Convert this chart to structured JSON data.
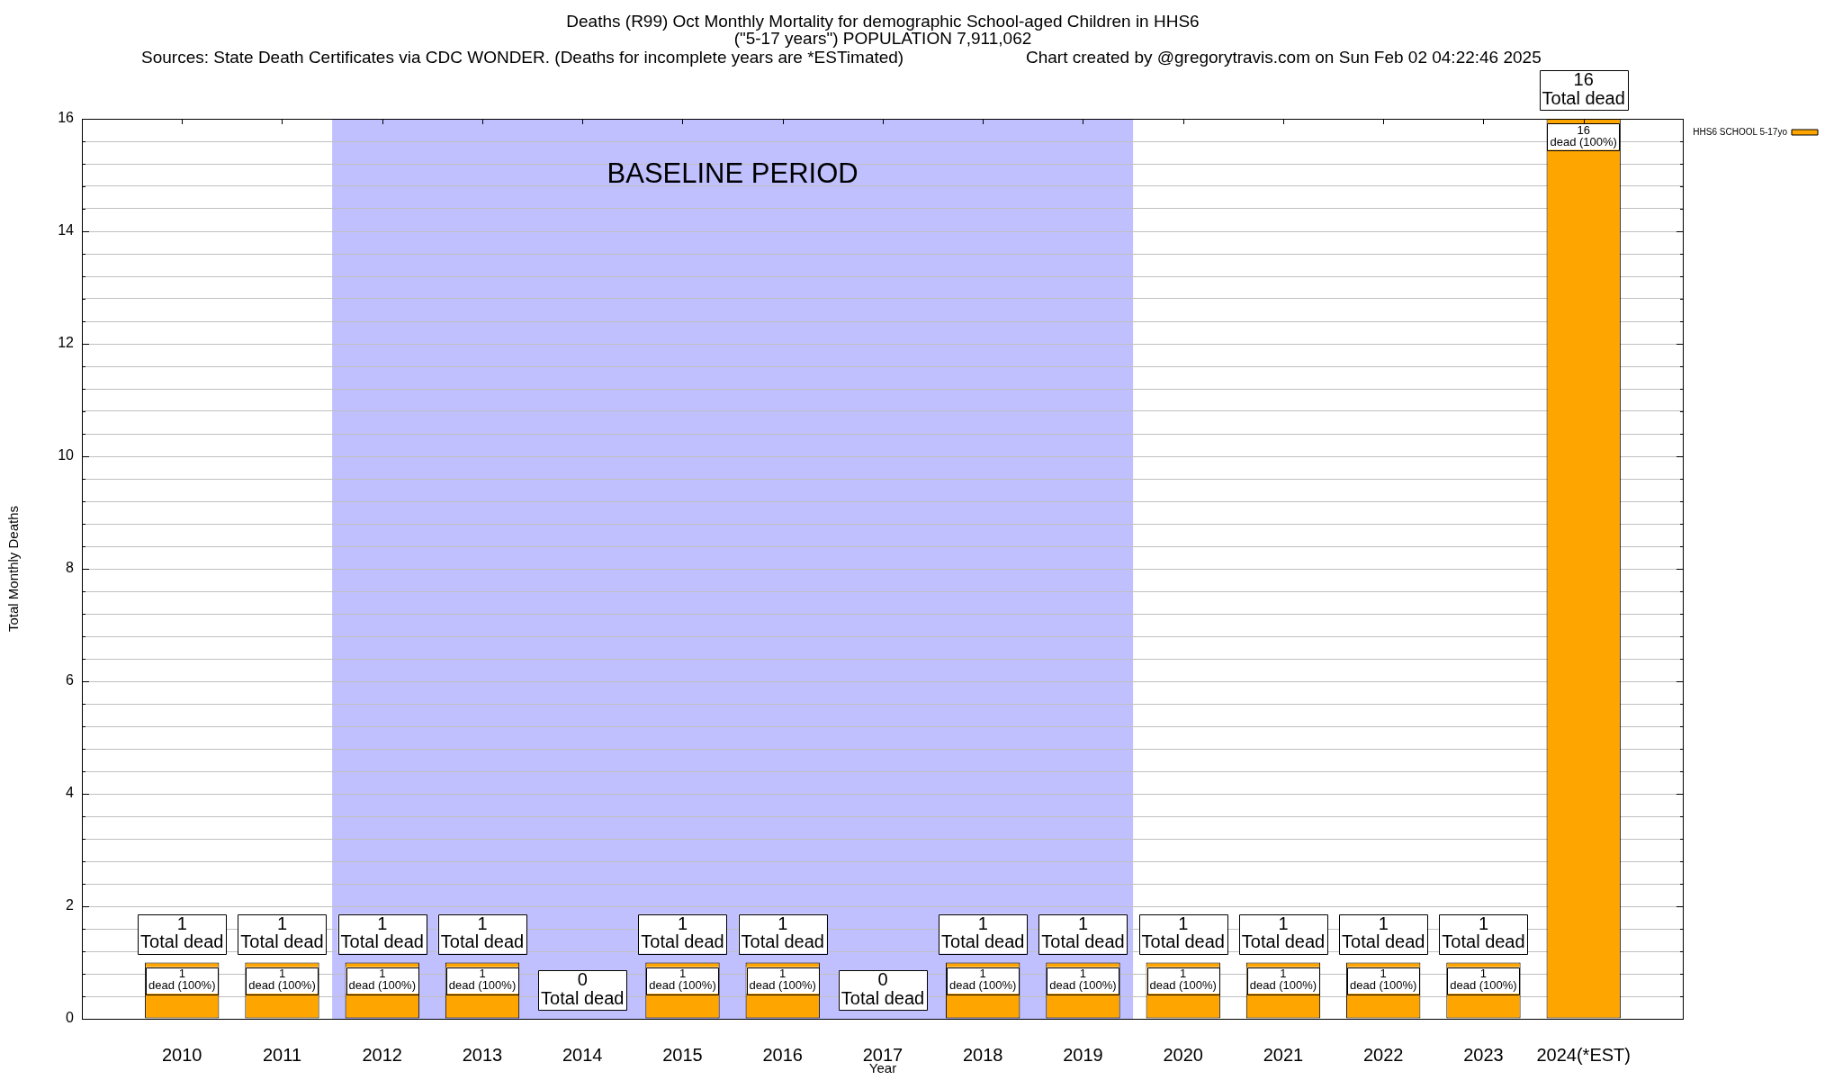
{
  "chart_data": {
    "type": "bar",
    "title": "Deaths (R99) Oct Monthly Mortality for demographic School-aged Children in HHS6",
    "subtitle": "(\"5-17 years\") POPULATION 7,911,062",
    "xlabel": "Year",
    "ylabel": "Total Monthly Deaths",
    "categories": [
      "2010",
      "2011",
      "2012",
      "2013",
      "2014",
      "2015",
      "2016",
      "2017",
      "2018",
      "2019",
      "2020",
      "2021",
      "2022",
      "2023",
      "2024(*EST)"
    ],
    "series": [
      {
        "name": "HHS6 SCHOOL 5-17yo",
        "color": "#ffa500",
        "values": [
          1,
          1,
          1,
          1,
          0,
          1,
          1,
          0,
          1,
          1,
          1,
          1,
          1,
          1,
          16
        ],
        "value_labels": [
          "1\ndead (100%)",
          "1\ndead (100%)",
          "1\ndead (100%)",
          "1\ndead (100%)",
          null,
          "1\ndead (100%)",
          "1\ndead (100%)",
          null,
          "1\ndead (100%)",
          "1\ndead (100%)",
          "1\ndead (100%)",
          "1\ndead (100%)",
          "1\ndead (100%)",
          "1\ndead (100%)",
          "16\ndead (100%)"
        ]
      }
    ],
    "totals": [
      "1\nTotal dead",
      "1\nTotal dead",
      "1\nTotal dead",
      "1\nTotal dead",
      "0\nTotal dead",
      "1\nTotal dead",
      "1\nTotal dead",
      "0\nTotal dead",
      "1\nTotal dead",
      "1\nTotal dead",
      "1\nTotal dead",
      "1\nTotal dead",
      "1\nTotal dead",
      "1\nTotal dead",
      "16\nTotal dead"
    ],
    "ylim": [
      0,
      16
    ],
    "yticks": [
      0,
      {
        "value": 0.4,
        "label": null
      },
      {
        "value": 0.8,
        "label": null
      },
      {
        "value": 1.2,
        "label": null
      },
      {
        "value": 1.6,
        "label": null
      },
      2,
      {
        "value": 2.4,
        "label": null
      },
      {
        "value": 2.8,
        "label": null
      },
      {
        "value": 3.2,
        "label": null
      },
      {
        "value": 3.6,
        "label": null
      },
      4,
      {
        "value": 4.4,
        "label": null
      },
      {
        "value": 4.8,
        "label": null
      },
      {
        "value": 5.2,
        "label": null
      },
      {
        "value": 5.6,
        "label": null
      },
      6,
      {
        "value": 6.4,
        "label": null
      },
      {
        "value": 6.8,
        "label": null
      },
      {
        "value": 7.2,
        "label": null
      },
      {
        "value": 7.6,
        "label": null
      },
      8,
      {
        "value": 8.4,
        "label": null
      },
      {
        "value": 8.8,
        "label": null
      },
      {
        "value": 9.2,
        "label": null
      },
      {
        "value": 9.6,
        "label": null
      },
      10,
      {
        "value": 10.4,
        "label": null
      },
      {
        "value": 10.8,
        "label": null
      },
      {
        "value": 11.2,
        "label": null
      },
      {
        "value": 11.6,
        "label": null
      },
      12,
      {
        "value": 12.4,
        "label": null
      },
      {
        "value": 12.8,
        "label": null
      },
      {
        "value": 13.2,
        "label": null
      },
      {
        "value": 13.6,
        "label": null
      },
      14,
      {
        "value": 14.4,
        "label": null
      },
      {
        "value": 14.8,
        "label": null
      },
      {
        "value": 15.2,
        "label": null
      },
      {
        "value": 15.6,
        "label": null
      },
      16
    ],
    "grid": "y",
    "legend": "top right",
    "bands": [
      {
        "axis": "x",
        "from": "2012",
        "to": "2019",
        "label": "BASELINE PERIOD",
        "color": "#c0c0ff"
      }
    ],
    "annotations": [
      "Sources: State Death Certificates via CDC WONDER. (Deaths for incomplete years are *ESTimated)",
      "Chart created by @gregorytravis.com on Sun Feb 02 04:22:46 2025"
    ]
  }
}
